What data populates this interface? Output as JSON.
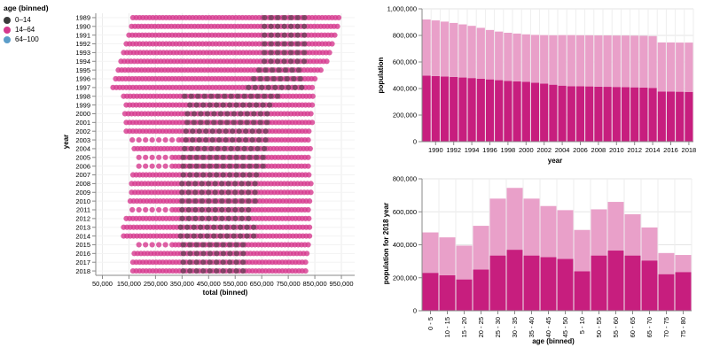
{
  "legend": {
    "title": "age (binned)",
    "items": [
      {
        "label": "0–14",
        "color": "#3a3a3a"
      },
      {
        "label": "14–64",
        "color": "#d6398e"
      },
      {
        "label": "64–100",
        "color": "#5b9dc9"
      }
    ]
  },
  "chart_data": [
    {
      "type": "scatter",
      "title": "",
      "xlabel": "total (binned)",
      "ylabel": "year",
      "x_ticks": [
        "50,000",
        "150,000",
        "250,000",
        "350,000",
        "450,000",
        "550,000",
        "650,000",
        "750,000",
        "850,000",
        "950,000"
      ],
      "xlim": [
        25000,
        1000000
      ],
      "years": [
        1989,
        1990,
        1991,
        1992,
        1993,
        1994,
        1995,
        1996,
        1997,
        1998,
        1999,
        2000,
        2001,
        2002,
        2003,
        2004,
        2005,
        2006,
        2007,
        2008,
        2009,
        2010,
        2011,
        2012,
        2013,
        2014,
        2015,
        2016,
        2017,
        2018
      ],
      "pink_min": [
        165000,
        160000,
        150000,
        140000,
        130000,
        120000,
        110000,
        100000,
        90000,
        130000,
        140000,
        135000,
        140000,
        140000,
        150000,
        170000,
        175000,
        175000,
        165000,
        160000,
        160000,
        155000,
        150000,
        140000,
        130000,
        130000,
        175000,
        170000,
        165000,
        165000
      ],
      "pink_max": [
        945000,
        935000,
        925000,
        915000,
        905000,
        895000,
        875000,
        860000,
        850000,
        845000,
        845000,
        845000,
        845000,
        835000,
        835000,
        835000,
        835000,
        835000,
        835000,
        835000,
        835000,
        835000,
        835000,
        835000,
        835000,
        835000,
        825000,
        825000,
        825000,
        825000
      ],
      "dark_min": [
        660000,
        660000,
        660000,
        660000,
        660000,
        660000,
        640000,
        620000,
        600000,
        360000,
        380000,
        370000,
        370000,
        365000,
        365000,
        360000,
        355000,
        355000,
        355000,
        350000,
        350000,
        350000,
        350000,
        350000,
        345000,
        345000,
        355000,
        355000,
        355000,
        355000
      ],
      "dark_max": [
        810000,
        810000,
        810000,
        810000,
        810000,
        810000,
        810000,
        810000,
        810000,
        720000,
        700000,
        690000,
        680000,
        680000,
        680000,
        680000,
        670000,
        660000,
        650000,
        640000,
        630000,
        630000,
        620000,
        620000,
        620000,
        620000,
        600000,
        600000,
        590000,
        590000
      ]
    },
    {
      "type": "bar",
      "title": "",
      "xlabel": "year",
      "ylabel": "population",
      "ylim": [
        0,
        1000000
      ],
      "y_ticks": [
        "0",
        "200,000",
        "400,000",
        "600,000",
        "800,000",
        "1,000,000"
      ],
      "x_ticks": [
        "1990",
        "1992",
        "1994",
        "1996",
        "1998",
        "2000",
        "2002",
        "2004",
        "2006",
        "2008",
        "2010",
        "2012",
        "2014",
        "2016",
        "2018"
      ],
      "categories": [
        1989,
        1990,
        1991,
        1992,
        1993,
        1994,
        1995,
        1996,
        1997,
        1998,
        1999,
        2000,
        2001,
        2002,
        2003,
        2004,
        2005,
        2006,
        2007,
        2008,
        2009,
        2010,
        2011,
        2012,
        2013,
        2014,
        2015,
        2016,
        2017,
        2018
      ],
      "series": [
        {
          "color": "#c71e7e",
          "values": [
            497000,
            494000,
            491000,
            487000,
            483000,
            479000,
            474000,
            469000,
            463000,
            458000,
            454000,
            450000,
            444000,
            437000,
            429000,
            422000,
            418000,
            417000,
            416000,
            414000,
            413000,
            412000,
            411000,
            409000,
            407000,
            405000,
            378000,
            377000,
            376000,
            375000
          ]
        },
        {
          "color": "#e9a0c9",
          "values": [
            423000,
            419000,
            413000,
            407000,
            400000,
            393000,
            383000,
            372000,
            366000,
            362000,
            360000,
            358000,
            360000,
            365000,
            372000,
            380000,
            384000,
            384000,
            385000,
            386000,
            387000,
            387000,
            388000,
            389000,
            390000,
            390000,
            369000,
            370000,
            370000,
            371000
          ]
        }
      ]
    },
    {
      "type": "bar",
      "title": "",
      "xlabel": "age (binned)",
      "ylabel": "population for 2018 year",
      "ylim": [
        0,
        800000
      ],
      "y_ticks": [
        "0",
        "200,000",
        "400,000",
        "600,000",
        "800,000"
      ],
      "categories": [
        "0 - 5",
        "10 - 15",
        "15 - 20",
        "20 - 25",
        "25 - 30",
        "30 - 35",
        "35 - 40",
        "40 - 45",
        "45 - 50",
        "5 - 10",
        "50 - 55",
        "55 - 60",
        "60 - 65",
        "65 - 70",
        "70 - 75",
        "75 - 80"
      ],
      "series": [
        {
          "color": "#c71e7e",
          "values": [
            230000,
            215000,
            190000,
            250000,
            335000,
            370000,
            335000,
            325000,
            315000,
            240000,
            335000,
            365000,
            335000,
            305000,
            222000,
            235000
          ]
        },
        {
          "color": "#e9a0c9",
          "values": [
            245000,
            230000,
            205000,
            265000,
            345000,
            375000,
            345000,
            310000,
            295000,
            250000,
            280000,
            295000,
            250000,
            200000,
            128000,
            103000
          ]
        }
      ]
    }
  ]
}
